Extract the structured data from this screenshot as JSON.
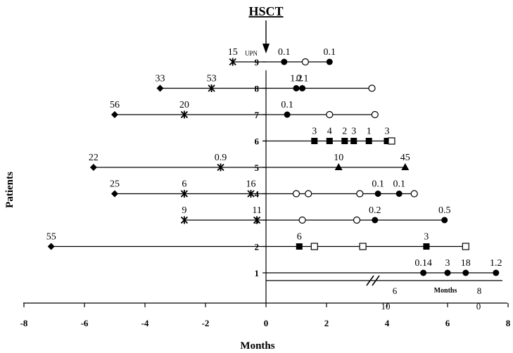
{
  "chart_data": {
    "type": "scatter",
    "title": "HSCT",
    "xlabel": "Months",
    "ylabel": "Patients",
    "xlim": [
      -8,
      8
    ],
    "ylim": [
      0,
      9.5
    ],
    "x_ticks": [
      -8,
      -6,
      -4,
      -2,
      0,
      2,
      4,
      6,
      8
    ],
    "y_ticks": [
      1,
      2,
      3,
      4,
      5,
      6,
      7,
      8,
      9
    ],
    "upn_label": "UPN",
    "grid": false,
    "legend": "none",
    "patients": [
      {
        "patient": 9,
        "line": [
          -1.1,
          2.1
        ],
        "markers": [
          {
            "x": -1.1,
            "symbol": "asterisk",
            "label": "15"
          },
          {
            "x": 0.6,
            "symbol": "filled-circle",
            "label": "0.1"
          },
          {
            "x": 1.3,
            "symbol": "open-circle",
            "label": ""
          },
          {
            "x": 2.1,
            "symbol": "filled-circle",
            "label": "0.1"
          }
        ]
      },
      {
        "patient": 8,
        "line": [
          -3.5,
          3.5
        ],
        "markers": [
          {
            "x": -3.5,
            "symbol": "diamond",
            "label": "33"
          },
          {
            "x": -1.8,
            "symbol": "asterisk",
            "label": "53"
          },
          {
            "x": 1.0,
            "symbol": "filled-circle",
            "label": "1.2"
          },
          {
            "x": 1.2,
            "symbol": "filled-circle",
            "label": "0.1"
          },
          {
            "x": 3.5,
            "symbol": "open-circle",
            "label": ""
          }
        ]
      },
      {
        "patient": 7,
        "line": [
          -5.0,
          3.6
        ],
        "markers": [
          {
            "x": -5.0,
            "symbol": "diamond",
            "label": "56"
          },
          {
            "x": -2.7,
            "symbol": "asterisk",
            "label": "20"
          },
          {
            "x": 0.7,
            "symbol": "filled-circle",
            "label": "0.1"
          },
          {
            "x": 2.1,
            "symbol": "open-circle",
            "label": ""
          },
          {
            "x": 3.6,
            "symbol": "open-circle",
            "label": ""
          }
        ]
      },
      {
        "patient": 6,
        "line": [
          -0.1,
          4.1
        ],
        "markers": [
          {
            "x": 1.6,
            "symbol": "filled-square",
            "label": "3"
          },
          {
            "x": 2.1,
            "symbol": "filled-square",
            "label": "4"
          },
          {
            "x": 2.6,
            "symbol": "filled-square",
            "label": "2"
          },
          {
            "x": 2.9,
            "symbol": "filled-square",
            "label": "3"
          },
          {
            "x": 3.4,
            "symbol": "filled-square",
            "label": "1"
          },
          {
            "x": 4.0,
            "symbol": "filled-square",
            "label": "3"
          },
          {
            "x": 4.15,
            "symbol": "open-square",
            "label": ""
          }
        ]
      },
      {
        "patient": 5,
        "line": [
          -5.7,
          4.6
        ],
        "markers": [
          {
            "x": -5.7,
            "symbol": "diamond",
            "label": "22"
          },
          {
            "x": -1.5,
            "symbol": "asterisk",
            "label": "0.9"
          },
          {
            "x": 2.4,
            "symbol": "triangle",
            "label": "10"
          },
          {
            "x": 4.6,
            "symbol": "triangle",
            "label": "45"
          }
        ]
      },
      {
        "patient": 4,
        "line": [
          -5.0,
          5.0
        ],
        "markers": [
          {
            "x": -5.0,
            "symbol": "diamond",
            "label": "25"
          },
          {
            "x": -2.7,
            "symbol": "asterisk",
            "label": "6"
          },
          {
            "x": -0.5,
            "symbol": "asterisk",
            "label": "16"
          },
          {
            "x": 1.0,
            "symbol": "open-circle",
            "label": ""
          },
          {
            "x": 1.4,
            "symbol": "open-circle",
            "label": ""
          },
          {
            "x": 3.1,
            "symbol": "open-circle",
            "label": ""
          },
          {
            "x": 3.7,
            "symbol": "filled-circle",
            "label": "0.1"
          },
          {
            "x": 4.4,
            "symbol": "filled-circle",
            "label": "0.1"
          },
          {
            "x": 4.9,
            "symbol": "open-circle",
            "label": ""
          }
        ]
      },
      {
        "patient": 3,
        "line": [
          -2.7,
          5.9
        ],
        "markers": [
          {
            "x": -2.7,
            "symbol": "asterisk",
            "label": "9"
          },
          {
            "x": -0.3,
            "symbol": "asterisk",
            "label": "11"
          },
          {
            "x": 1.2,
            "symbol": "open-circle",
            "label": ""
          },
          {
            "x": 3.0,
            "symbol": "open-circle",
            "label": ""
          },
          {
            "x": 3.6,
            "symbol": "filled-circle",
            "label": "0.2"
          },
          {
            "x": 5.9,
            "symbol": "filled-circle",
            "label": "0.5"
          }
        ]
      },
      {
        "patient": 2,
        "line": [
          -7.1,
          6.6
        ],
        "markers": [
          {
            "x": -7.1,
            "symbol": "diamond",
            "label": "55"
          },
          {
            "x": 1.1,
            "symbol": "filled-square",
            "label": "6"
          },
          {
            "x": 1.6,
            "symbol": "open-square",
            "label": ""
          },
          {
            "x": 3.2,
            "symbol": "open-square",
            "label": ""
          },
          {
            "x": 5.3,
            "symbol": "filled-square",
            "label": "3"
          },
          {
            "x": 6.6,
            "symbol": "open-square",
            "label": ""
          }
        ]
      },
      {
        "patient": 1,
        "line": [
          0,
          7.6
        ],
        "markers": [
          {
            "x": 5.2,
            "symbol": "filled-circle",
            "label": "0.14"
          },
          {
            "x": 6.0,
            "symbol": "filled-circle",
            "label": "3"
          },
          {
            "x": 6.6,
            "symbol": "filled-circle",
            "label": "18"
          },
          {
            "x": 7.6,
            "symbol": "filled-circle",
            "label": "1.2"
          }
        ]
      }
    ],
    "patient1_axis": {
      "label": "Months",
      "ticks": [
        "6",
        "8",
        "10",
        "0"
      ]
    }
  }
}
